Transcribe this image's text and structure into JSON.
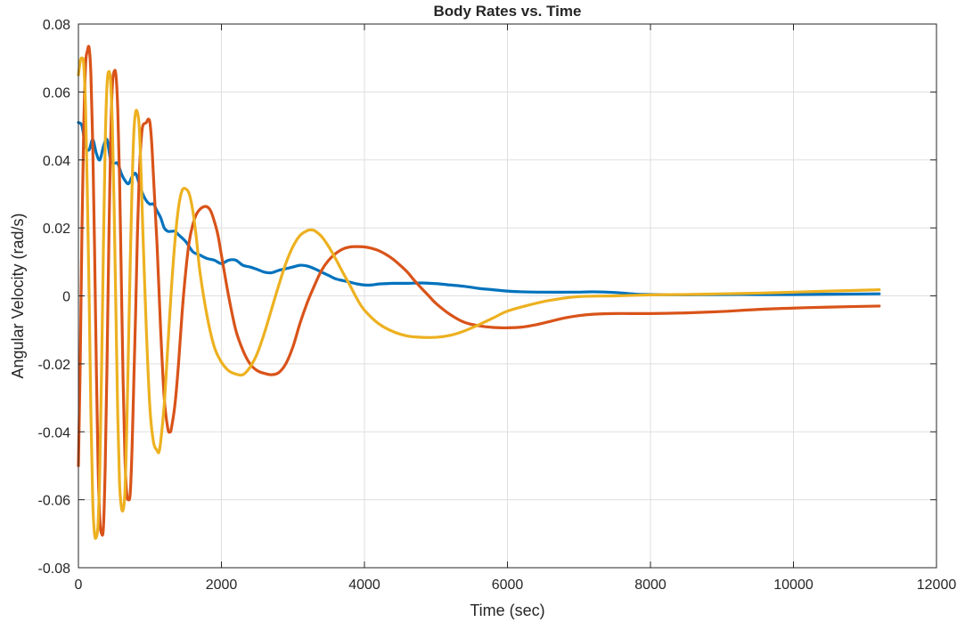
{
  "chart_data": {
    "type": "line",
    "title": "Body Rates vs. Time",
    "xlabel": "Time (sec)",
    "ylabel": "Angular Velocity (rad/s)",
    "xlim": [
      0,
      12000
    ],
    "ylim": [
      -0.08,
      0.08
    ],
    "xticks": [
      0,
      2000,
      4000,
      6000,
      8000,
      10000,
      12000
    ],
    "xtick_labels": [
      "0",
      "2000",
      "4000",
      "6000",
      "8000",
      "10000",
      "12000"
    ],
    "yticks": [
      -0.08,
      -0.06,
      -0.04,
      -0.02,
      0,
      0.02,
      0.04,
      0.06,
      0.08
    ],
    "ytick_labels": [
      "-0.08",
      "-0.06",
      "-0.04",
      "-0.02",
      "0",
      "0.02",
      "0.04",
      "0.06",
      "0.08"
    ],
    "grid": true,
    "legend": "none",
    "series": [
      {
        "color": "#0072BD",
        "points": [
          [
            0,
            0.051
          ],
          [
            50,
            0.05
          ],
          [
            100,
            0.044
          ],
          [
            150,
            0.043
          ],
          [
            200,
            0.046
          ],
          [
            250,
            0.042
          ],
          [
            300,
            0.04
          ],
          [
            350,
            0.044
          ],
          [
            400,
            0.046
          ],
          [
            450,
            0.04
          ],
          [
            500,
            0.039
          ],
          [
            550,
            0.039
          ],
          [
            600,
            0.036
          ],
          [
            650,
            0.034
          ],
          [
            700,
            0.033
          ],
          [
            750,
            0.035
          ],
          [
            800,
            0.036
          ],
          [
            850,
            0.033
          ],
          [
            900,
            0.03
          ],
          [
            950,
            0.028
          ],
          [
            1000,
            0.027
          ],
          [
            1050,
            0.027
          ],
          [
            1100,
            0.025
          ],
          [
            1150,
            0.023
          ],
          [
            1200,
            0.02
          ],
          [
            1250,
            0.019
          ],
          [
            1300,
            0.019
          ],
          [
            1350,
            0.019
          ],
          [
            1400,
            0.018
          ],
          [
            1500,
            0.016
          ],
          [
            1600,
            0.013
          ],
          [
            1700,
            0.012
          ],
          [
            1800,
            0.011
          ],
          [
            1900,
            0.0105
          ],
          [
            2000,
            0.0095
          ],
          [
            2100,
            0.0105
          ],
          [
            2200,
            0.0105
          ],
          [
            2300,
            0.009
          ],
          [
            2400,
            0.0085
          ],
          [
            2500,
            0.0078
          ],
          [
            2600,
            0.007
          ],
          [
            2700,
            0.0068
          ],
          [
            2800,
            0.0075
          ],
          [
            2900,
            0.008
          ],
          [
            3000,
            0.0085
          ],
          [
            3100,
            0.009
          ],
          [
            3200,
            0.0088
          ],
          [
            3300,
            0.008
          ],
          [
            3400,
            0.007
          ],
          [
            3500,
            0.006
          ],
          [
            3600,
            0.005
          ],
          [
            3700,
            0.0045
          ],
          [
            3800,
            0.004
          ],
          [
            3900,
            0.0035
          ],
          [
            4000,
            0.0032
          ],
          [
            4100,
            0.0032
          ],
          [
            4200,
            0.0035
          ],
          [
            4300,
            0.0036
          ],
          [
            4400,
            0.0037
          ],
          [
            4600,
            0.0037
          ],
          [
            4800,
            0.0038
          ],
          [
            5000,
            0.0036
          ],
          [
            5200,
            0.0032
          ],
          [
            5400,
            0.0028
          ],
          [
            5600,
            0.0022
          ],
          [
            5800,
            0.0018
          ],
          [
            6000,
            0.0014
          ],
          [
            6200,
            0.0012
          ],
          [
            6500,
            0.0011
          ],
          [
            7000,
            0.0011
          ],
          [
            7200,
            0.0012
          ],
          [
            7500,
            0.001
          ],
          [
            7800,
            0.0005
          ],
          [
            8000,
            0.0004
          ],
          [
            8500,
            0.0003
          ],
          [
            9000,
            0.0004
          ],
          [
            9500,
            0.0004
          ],
          [
            10000,
            0.0004
          ],
          [
            10500,
            0.0005
          ],
          [
            11200,
            0.0006
          ]
        ]
      },
      {
        "color": "#D95319",
        "points": [
          [
            0,
            -0.05
          ],
          [
            25,
            -0.02
          ],
          [
            50,
            0.02
          ],
          [
            75,
            0.05
          ],
          [
            100,
            0.068
          ],
          [
            125,
            0.072
          ],
          [
            150,
            0.073
          ],
          [
            175,
            0.065
          ],
          [
            200,
            0.045
          ],
          [
            225,
            0.015
          ],
          [
            250,
            -0.02
          ],
          [
            275,
            -0.05
          ],
          [
            300,
            -0.066
          ],
          [
            325,
            -0.07
          ],
          [
            350,
            -0.068
          ],
          [
            375,
            -0.05
          ],
          [
            400,
            -0.02
          ],
          [
            425,
            0.015
          ],
          [
            450,
            0.045
          ],
          [
            475,
            0.062
          ],
          [
            500,
            0.066
          ],
          [
            525,
            0.065
          ],
          [
            550,
            0.055
          ],
          [
            575,
            0.035
          ],
          [
            600,
            0.005
          ],
          [
            625,
            -0.025
          ],
          [
            650,
            -0.047
          ],
          [
            675,
            -0.058
          ],
          [
            700,
            -0.06
          ],
          [
            725,
            -0.058
          ],
          [
            750,
            -0.045
          ],
          [
            775,
            -0.025
          ],
          [
            800,
            -0.005
          ],
          [
            825,
            0.018
          ],
          [
            850,
            0.035
          ],
          [
            875,
            0.045
          ],
          [
            900,
            0.05
          ],
          [
            950,
            0.051
          ],
          [
            975,
            0.052
          ],
          [
            1000,
            0.051
          ],
          [
            1025,
            0.045
          ],
          [
            1050,
            0.035
          ],
          [
            1100,
            0.015
          ],
          [
            1150,
            -0.01
          ],
          [
            1200,
            -0.03
          ],
          [
            1250,
            -0.039
          ],
          [
            1280,
            -0.04
          ],
          [
            1300,
            -0.039
          ],
          [
            1350,
            -0.032
          ],
          [
            1400,
            -0.02
          ],
          [
            1450,
            -0.005
          ],
          [
            1500,
            0.007
          ],
          [
            1550,
            0.016
          ],
          [
            1600,
            0.021
          ],
          [
            1650,
            0.024
          ],
          [
            1700,
            0.0255
          ],
          [
            1750,
            0.0262
          ],
          [
            1800,
            0.0262
          ],
          [
            1850,
            0.025
          ],
          [
            1900,
            0.022
          ],
          [
            1950,
            0.018
          ],
          [
            2000,
            0.012
          ],
          [
            2100,
            0
          ],
          [
            2200,
            -0.01
          ],
          [
            2300,
            -0.016
          ],
          [
            2400,
            -0.02
          ],
          [
            2500,
            -0.022
          ],
          [
            2600,
            -0.0228
          ],
          [
            2700,
            -0.0232
          ],
          [
            2800,
            -0.0226
          ],
          [
            2900,
            -0.02
          ],
          [
            3000,
            -0.015
          ],
          [
            3100,
            -0.008
          ],
          [
            3200,
            -0.002
          ],
          [
            3300,
            0.003
          ],
          [
            3400,
            0.0075
          ],
          [
            3500,
            0.0105
          ],
          [
            3600,
            0.0125
          ],
          [
            3700,
            0.0138
          ],
          [
            3800,
            0.0144
          ],
          [
            3900,
            0.0145
          ],
          [
            4000,
            0.0144
          ],
          [
            4100,
            0.014
          ],
          [
            4200,
            0.0133
          ],
          [
            4300,
            0.0122
          ],
          [
            4400,
            0.0108
          ],
          [
            4500,
            0.009
          ],
          [
            4600,
            0.007
          ],
          [
            4700,
            0.0045
          ],
          [
            4800,
            0.0022
          ],
          [
            4900,
            0
          ],
          [
            5000,
            -0.0022
          ],
          [
            5200,
            -0.0055
          ],
          [
            5400,
            -0.0078
          ],
          [
            5600,
            -0.0088
          ],
          [
            5800,
            -0.0093
          ],
          [
            6000,
            -0.0094
          ],
          [
            6200,
            -0.0092
          ],
          [
            6400,
            -0.0085
          ],
          [
            6600,
            -0.0075
          ],
          [
            6800,
            -0.0065
          ],
          [
            7000,
            -0.0058
          ],
          [
            7200,
            -0.0054
          ],
          [
            7500,
            -0.0052
          ],
          [
            8000,
            -0.0052
          ],
          [
            8500,
            -0.005
          ],
          [
            9000,
            -0.0046
          ],
          [
            9500,
            -0.004
          ],
          [
            10000,
            -0.0036
          ],
          [
            10500,
            -0.0033
          ],
          [
            11200,
            -0.003
          ]
        ]
      },
      {
        "color": "#EDB120",
        "points": [
          [
            0,
            0.065
          ],
          [
            25,
            0.069
          ],
          [
            50,
            0.07
          ],
          [
            75,
            0.068
          ],
          [
            100,
            0.055
          ],
          [
            125,
            0.03
          ],
          [
            150,
            0
          ],
          [
            175,
            -0.035
          ],
          [
            200,
            -0.06
          ],
          [
            225,
            -0.07
          ],
          [
            250,
            -0.071
          ],
          [
            275,
            -0.067
          ],
          [
            300,
            -0.05
          ],
          [
            325,
            -0.02
          ],
          [
            350,
            0.015
          ],
          [
            375,
            0.045
          ],
          [
            400,
            0.062
          ],
          [
            425,
            0.066
          ],
          [
            450,
            0.063
          ],
          [
            475,
            0.05
          ],
          [
            500,
            0.025
          ],
          [
            525,
            -0.005
          ],
          [
            550,
            -0.035
          ],
          [
            575,
            -0.055
          ],
          [
            600,
            -0.062
          ],
          [
            625,
            -0.063
          ],
          [
            650,
            -0.058
          ],
          [
            675,
            -0.04
          ],
          [
            700,
            -0.015
          ],
          [
            725,
            0.01
          ],
          [
            750,
            0.032
          ],
          [
            775,
            0.048
          ],
          [
            800,
            0.054
          ],
          [
            825,
            0.054
          ],
          [
            850,
            0.05
          ],
          [
            875,
            0.037
          ],
          [
            900,
            0.02
          ],
          [
            950,
            -0.01
          ],
          [
            1000,
            -0.033
          ],
          [
            1050,
            -0.043
          ],
          [
            1100,
            -0.0455
          ],
          [
            1125,
            -0.046
          ],
          [
            1150,
            -0.043
          ],
          [
            1200,
            -0.032
          ],
          [
            1250,
            -0.015
          ],
          [
            1300,
            0.002
          ],
          [
            1350,
            0.016
          ],
          [
            1400,
            0.026
          ],
          [
            1450,
            0.031
          ],
          [
            1500,
            0.0315
          ],
          [
            1550,
            0.03
          ],
          [
            1600,
            0.025
          ],
          [
            1650,
            0.017
          ],
          [
            1700,
            0.007
          ],
          [
            1800,
            -0.006
          ],
          [
            1900,
            -0.015
          ],
          [
            2000,
            -0.0195
          ],
          [
            2100,
            -0.022
          ],
          [
            2200,
            -0.023
          ],
          [
            2300,
            -0.0232
          ],
          [
            2400,
            -0.021
          ],
          [
            2500,
            -0.017
          ],
          [
            2600,
            -0.011
          ],
          [
            2700,
            -0.004
          ],
          [
            2800,
            0.003
          ],
          [
            2900,
            0.0095
          ],
          [
            3000,
            0.0145
          ],
          [
            3100,
            0.0178
          ],
          [
            3200,
            0.0192
          ],
          [
            3250,
            0.0194
          ],
          [
            3300,
            0.0192
          ],
          [
            3400,
            0.0175
          ],
          [
            3500,
            0.0145
          ],
          [
            3600,
            0.0108
          ],
          [
            3700,
            0.0068
          ],
          [
            3800,
            0.003
          ],
          [
            3900,
            -0.001
          ],
          [
            4000,
            -0.0042
          ],
          [
            4200,
            -0.0082
          ],
          [
            4400,
            -0.0105
          ],
          [
            4600,
            -0.0118
          ],
          [
            4800,
            -0.0122
          ],
          [
            5000,
            -0.0122
          ],
          [
            5200,
            -0.0116
          ],
          [
            5400,
            -0.0103
          ],
          [
            5600,
            -0.0085
          ],
          [
            5800,
            -0.0065
          ],
          [
            6000,
            -0.0045
          ],
          [
            6300,
            -0.0027
          ],
          [
            6600,
            -0.0013
          ],
          [
            7000,
            -0.0002
          ],
          [
            7500,
            0
          ],
          [
            8000,
            0.0003
          ],
          [
            8500,
            0.0004
          ],
          [
            9000,
            0.0006
          ],
          [
            9500,
            0.0008
          ],
          [
            10000,
            0.0011
          ],
          [
            10500,
            0.0014
          ],
          [
            11200,
            0.0018
          ]
        ]
      }
    ]
  }
}
